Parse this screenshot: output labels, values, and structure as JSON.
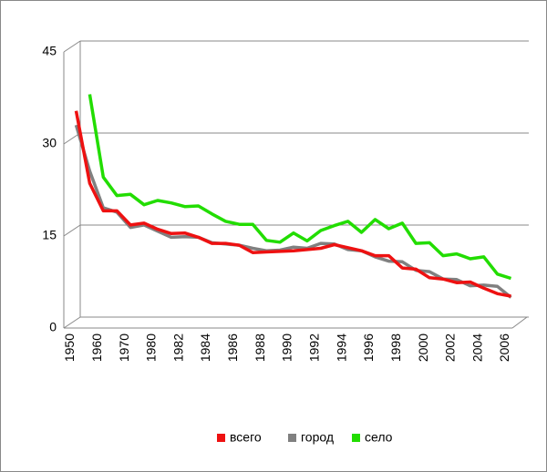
{
  "chart_data": {
    "type": "line",
    "categories": [
      "1950",
      null,
      "1960",
      null,
      "1970",
      null,
      "1980",
      null,
      "1982",
      null,
      "1984",
      null,
      "1986",
      null,
      "1988",
      null,
      "1990",
      null,
      "1992",
      null,
      "1994",
      null,
      "1996",
      null,
      "1998",
      null,
      "2000",
      null,
      "2002",
      null,
      "2004",
      null,
      "2006"
    ],
    "series": [
      {
        "name": "всего",
        "color": "#ee1111",
        "values": [
          34.8,
          23,
          18.5,
          18.5,
          16.2,
          16.5,
          15.5,
          14.8,
          14.9,
          14.2,
          13.2,
          13.2,
          12.9,
          11.7,
          11.8,
          11.9,
          12.0,
          12.2,
          12.4,
          13.0,
          12.5,
          12.0,
          11.2,
          11.2,
          9.2,
          9.0,
          7.6,
          7.4,
          6.8,
          6.9,
          5.9,
          5.0,
          4.6
        ]
      },
      {
        "name": "город",
        "color": "#808080",
        "values": [
          32.5,
          25,
          19,
          18.3,
          15.8,
          16.2,
          15.2,
          14.2,
          14.3,
          14.2,
          13.3,
          13.1,
          12.9,
          12.4,
          12.0,
          12.1,
          12.6,
          12.4,
          13.2,
          13.1,
          12.2,
          12.0,
          11.0,
          10.3,
          10.2,
          8.8,
          8.6,
          7.4,
          7.3,
          6.3,
          6.4,
          6.2,
          4.4
        ]
      },
      {
        "name": "село",
        "color": "#22dd00",
        "values": [
          null,
          37.5,
          24,
          21,
          21.2,
          19.5,
          20.2,
          19.8,
          19.2,
          19.3,
          18,
          16.8,
          16.3,
          16.3,
          13.7,
          13.4,
          14.9,
          13.6,
          15.3,
          16.1,
          16.8,
          15,
          17.1,
          15.6,
          16.5,
          13.2,
          13.3,
          11.2,
          11.5,
          10.7,
          11.0,
          8.2,
          7.5
        ]
      }
    ],
    "ylim": [
      0,
      45
    ],
    "yticks": [
      0,
      15,
      30,
      45
    ],
    "grid": true,
    "legend": "bottom"
  }
}
